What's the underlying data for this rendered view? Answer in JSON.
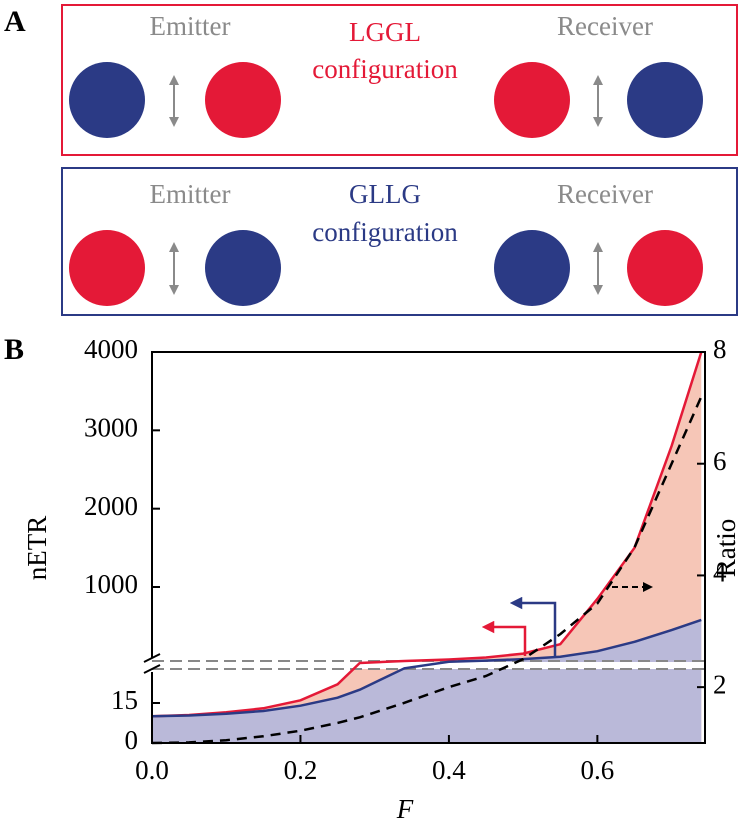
{
  "panel_a": {
    "label": "A",
    "boxes": [
      {
        "left": "Emitter",
        "title": [
          "LGGL",
          "configuration"
        ],
        "right": "Receiver"
      },
      {
        "left": "Emitter",
        "title": [
          "GLLG",
          "configuration"
        ],
        "right": "Receiver"
      }
    ]
  },
  "chart_data": {
    "type": "line",
    "panel_label": "B",
    "x_label": "F",
    "y_label": "nETR",
    "y2_label": "Ratio",
    "x": [
      0,
      0.05,
      0.1,
      0.15,
      0.2,
      0.25,
      0.28,
      0.34,
      0.4,
      0.45,
      0.5,
      0.55,
      0.6,
      0.65,
      0.7,
      0.74
    ],
    "series": [
      {
        "color": "#e41937",
        "fill": "#f6c6b7",
        "values": [
          10,
          10.5,
          11.5,
          13,
          16,
          22,
          30,
          55,
          75,
          100,
          150,
          270,
          850,
          1500,
          2800,
          4000
        ]
      },
      {
        "color": "#2b3a85",
        "fill": "#bab9d9",
        "values": [
          10,
          10.3,
          11,
          12,
          14,
          17,
          20,
          28,
          45,
          60,
          80,
          110,
          180,
          300,
          450,
          580
        ]
      },
      {
        "color": "#000000",
        "dashed": true,
        "axis": "y2",
        "values": [
          1,
          1.01,
          1.05,
          1.12,
          1.22,
          1.36,
          1.46,
          1.72,
          2.0,
          2.2,
          2.5,
          2.95,
          3.5,
          4.5,
          6.0,
          7.2
        ]
      }
    ],
    "xlim": [
      0,
      0.745
    ],
    "xticks": [
      {
        "value": 0,
        "label": "0.0"
      },
      0.2,
      0.4,
      0.6
    ],
    "ylim": [
      0,
      4000
    ],
    "ybreak": 30,
    "yticks": [
      0,
      15,
      1000,
      2000,
      3000,
      4000
    ],
    "y2lim": [
      1,
      8
    ],
    "y2ticks": [
      2,
      4,
      6,
      8
    ]
  }
}
